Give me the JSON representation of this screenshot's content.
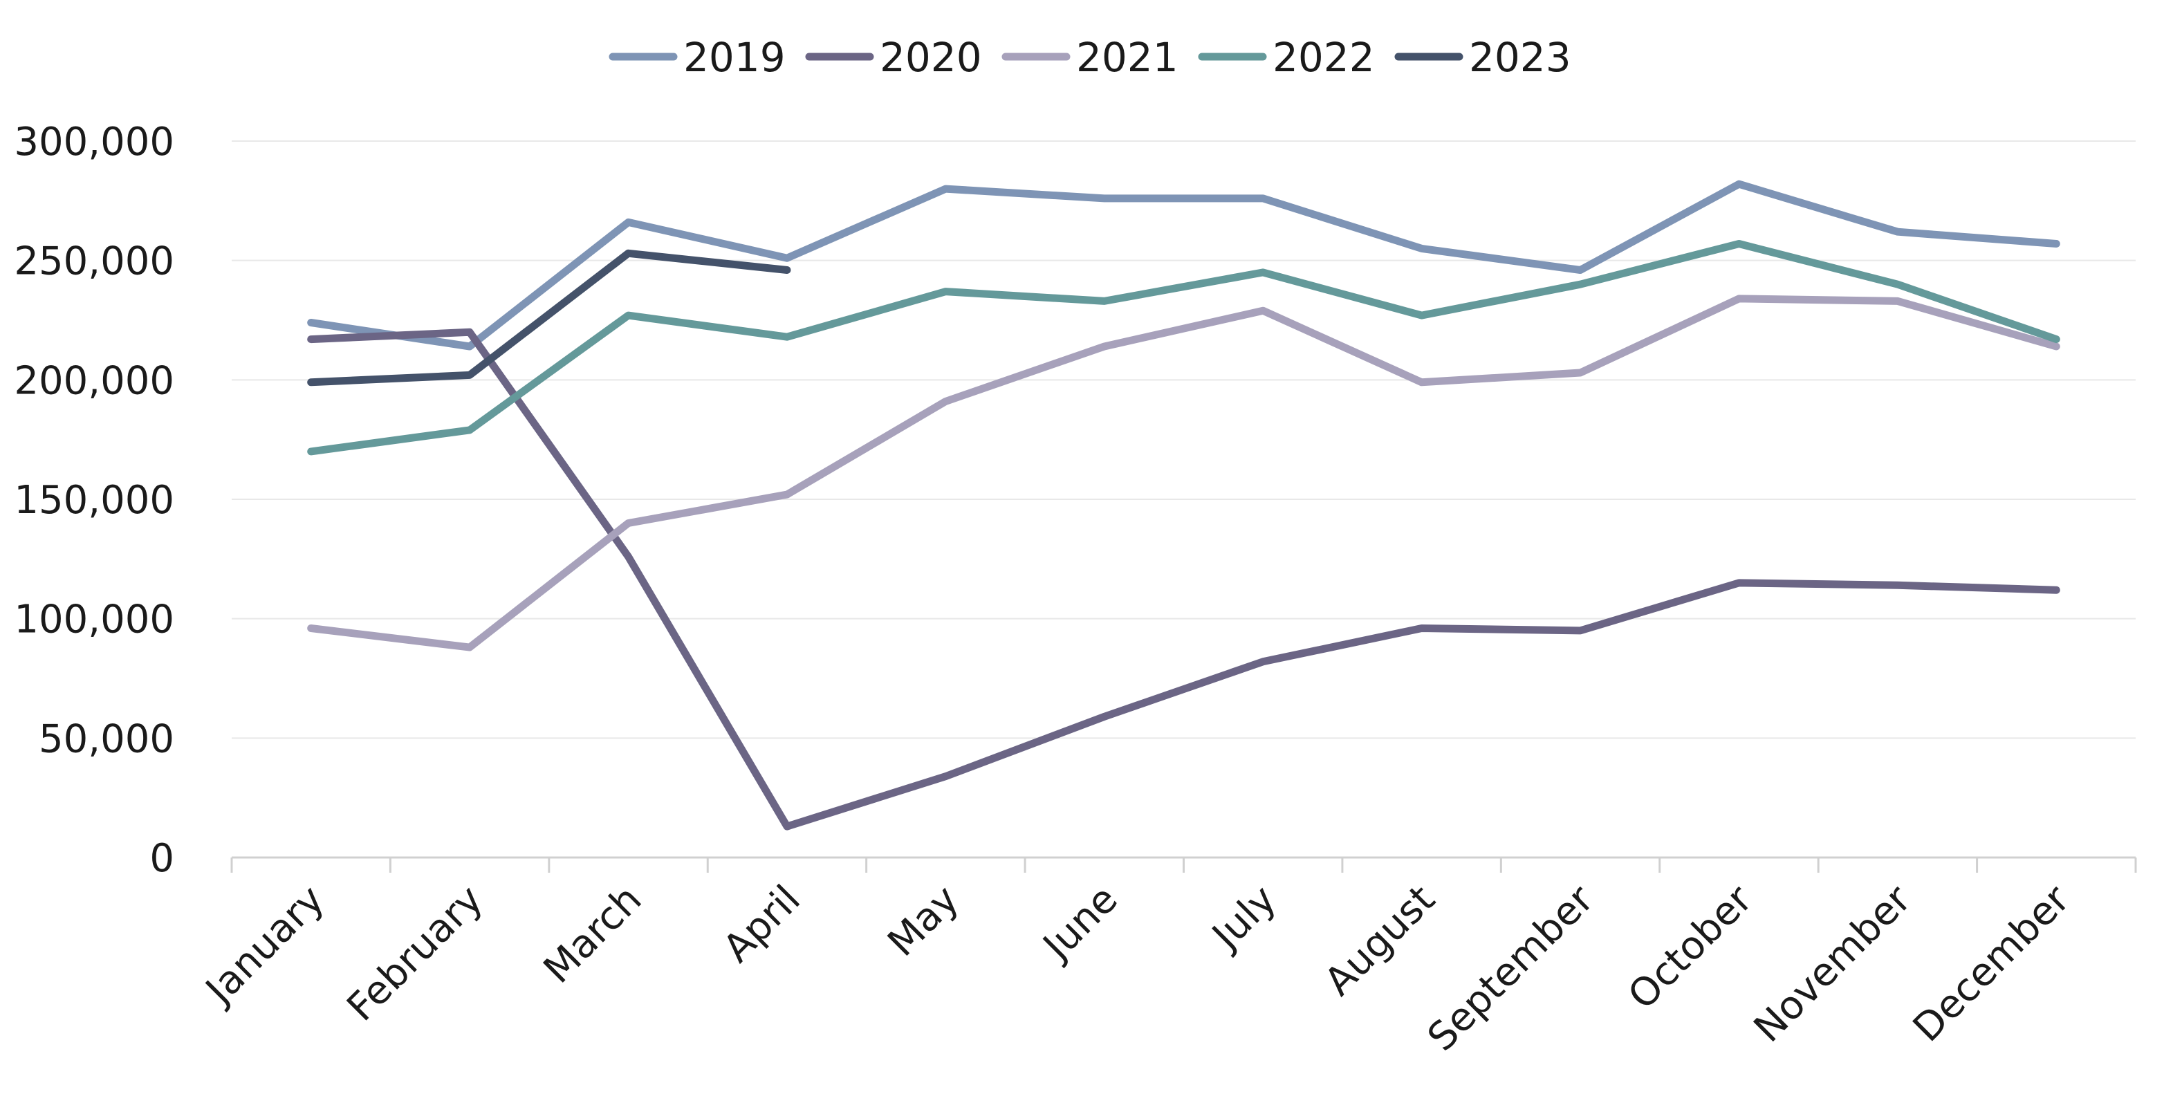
{
  "chart_data": {
    "type": "line",
    "title": "",
    "xlabel": "",
    "ylabel": "",
    "categories": [
      "January",
      "February",
      "March",
      "April",
      "May",
      "June",
      "July",
      "August",
      "September",
      "October",
      "November",
      "December"
    ],
    "ylim": [
      0,
      300000
    ],
    "yticks": [
      0,
      50000,
      100000,
      150000,
      200000,
      250000,
      300000
    ],
    "ytick_labels": [
      "0",
      "50,000",
      "100,000",
      "150,000",
      "200,000",
      "250,000",
      "300,000"
    ],
    "grid": true,
    "legend_position": "top-center",
    "series": [
      {
        "name": "2019",
        "color": "#7e94b5",
        "values": [
          224000,
          214000,
          266000,
          251000,
          280000,
          276000,
          276000,
          255000,
          246000,
          282000,
          262000,
          257000
        ]
      },
      {
        "name": "2020",
        "color": "#6b6585",
        "values": [
          217000,
          220000,
          126000,
          13000,
          34000,
          59000,
          82000,
          96000,
          95000,
          115000,
          114000,
          112000
        ]
      },
      {
        "name": "2021",
        "color": "#a7a1bb",
        "values": [
          96000,
          88000,
          140000,
          152000,
          191000,
          214000,
          229000,
          199000,
          203000,
          234000,
          233000,
          214000
        ]
      },
      {
        "name": "2022",
        "color": "#64999a",
        "values": [
          170000,
          179000,
          227000,
          218000,
          237000,
          233000,
          245000,
          227000,
          240000,
          257000,
          240000,
          217000
        ]
      },
      {
        "name": "2023",
        "color": "#44526a",
        "values": [
          199000,
          202000,
          253000,
          246000,
          null,
          null,
          null,
          null,
          null,
          null,
          null,
          null
        ]
      }
    ]
  }
}
